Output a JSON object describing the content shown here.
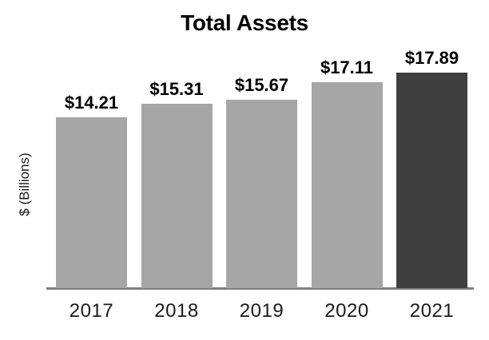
{
  "chart_data": {
    "type": "bar",
    "title": "Total Assets",
    "xlabel": "",
    "ylabel": "$ (Billions)",
    "categories": [
      "2017",
      "2018",
      "2019",
      "2020",
      "2021"
    ],
    "values": [
      14.21,
      15.31,
      15.67,
      17.11,
      17.89
    ],
    "value_labels": [
      "$14.21",
      "$15.31",
      "$15.67",
      "$17.11",
      "$17.89"
    ],
    "ylim": [
      0,
      17.89
    ],
    "grid": false,
    "legend": "none",
    "y_axis_ticks": "none",
    "bar_colors": [
      "#A6A6A6",
      "#A6A6A6",
      "#A6A6A6",
      "#A6A6A6",
      "#3F3F3F"
    ],
    "axis_line_color": "#7F7F7F",
    "text_color": "#000000",
    "background_color": "#FFFFFF"
  }
}
